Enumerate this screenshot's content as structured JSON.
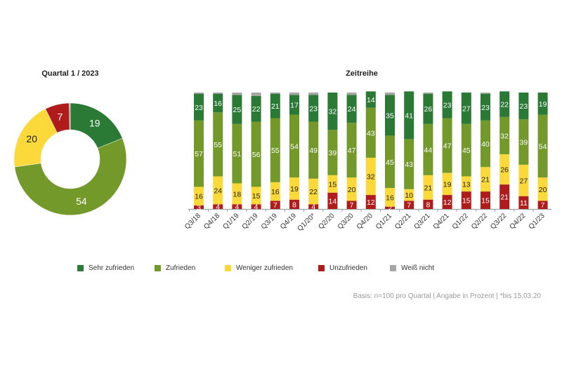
{
  "chart_data": [
    {
      "type": "pie",
      "variant": "donut",
      "title": "Quartal 1 / 2023",
      "slices": [
        {
          "name": "Sehr zufrieden",
          "value": 19
        },
        {
          "name": "Zufrieden",
          "value": 54
        },
        {
          "name": "Weniger zufrieden",
          "value": 20
        },
        {
          "name": "Unzufrieden",
          "value": 7
        },
        {
          "name": "Weiß nicht",
          "value": 0.3
        }
      ],
      "data_labels": [
        "19",
        "54",
        "20",
        "7",
        ""
      ]
    },
    {
      "type": "bar",
      "stacked": true,
      "title": "Zeitreihe",
      "categories": [
        "Q3/18",
        "Q4/18",
        "Q1/19",
        "Q2/19",
        "Q3/19",
        "Q4/19",
        "Q1/20*",
        "Q2/20",
        "Q3/20",
        "Q4/20",
        "Q1/21",
        "Q2/21",
        "Q3/21",
        "Q4/21",
        "Q1/22",
        "Q2/22",
        "Q3/22",
        "Q4/22",
        "Q1/23"
      ],
      "ylim": [
        0,
        100
      ],
      "series": [
        {
          "name": "Unzufrieden",
          "values": [
            3,
            4,
            4,
            4,
            7,
            8,
            4,
            14,
            7,
            12,
            2,
            7,
            8,
            12,
            15,
            15,
            21,
            11,
            7
          ]
        },
        {
          "name": "Weniger zufrieden",
          "values": [
            16,
            24,
            18,
            15,
            16,
            19,
            22,
            15,
            20,
            32,
            16,
            10,
            21,
            19,
            13,
            21,
            26,
            27,
            20
          ]
        },
        {
          "name": "Zufrieden",
          "values": [
            57,
            55,
            51,
            56,
            55,
            54,
            49,
            39,
            47,
            43,
            45,
            43,
            44,
            47,
            45,
            40,
            32,
            39,
            54
          ]
        },
        {
          "name": "Sehr zufrieden",
          "values": [
            23,
            16,
            25,
            22,
            21,
            17,
            23,
            32,
            24,
            14,
            35,
            41,
            26,
            23,
            27,
            23,
            22,
            23,
            19
          ]
        },
        {
          "name": "Weiß nicht",
          "values": [
            1,
            1,
            2,
            3,
            1,
            2,
            2,
            0,
            2,
            0,
            2,
            0,
            1,
            0,
            0,
            1,
            0,
            0,
            0
          ]
        }
      ]
    }
  ],
  "legend": [
    {
      "name": "Sehr zufrieden",
      "color": "#2a7a35"
    },
    {
      "name": "Zufrieden",
      "color": "#73992b"
    },
    {
      "name": "Weniger zufrieden",
      "color": "#fbd93a"
    },
    {
      "name": "Unzufrieden",
      "color": "#b01c1c"
    },
    {
      "name": "Weiß nicht",
      "color": "#a6a6a6"
    }
  ],
  "colors": {
    "Sehr zufrieden": "#2a7a35",
    "Zufrieden": "#73992b",
    "Weniger zufrieden": "#fbd93a",
    "Unzufrieden": "#b01c1c",
    "Weiß nicht": "#a6a6a6"
  },
  "footnote": "Basis: n=100 pro Quartal | Angabe in Prozent | *bis 15.03.20"
}
